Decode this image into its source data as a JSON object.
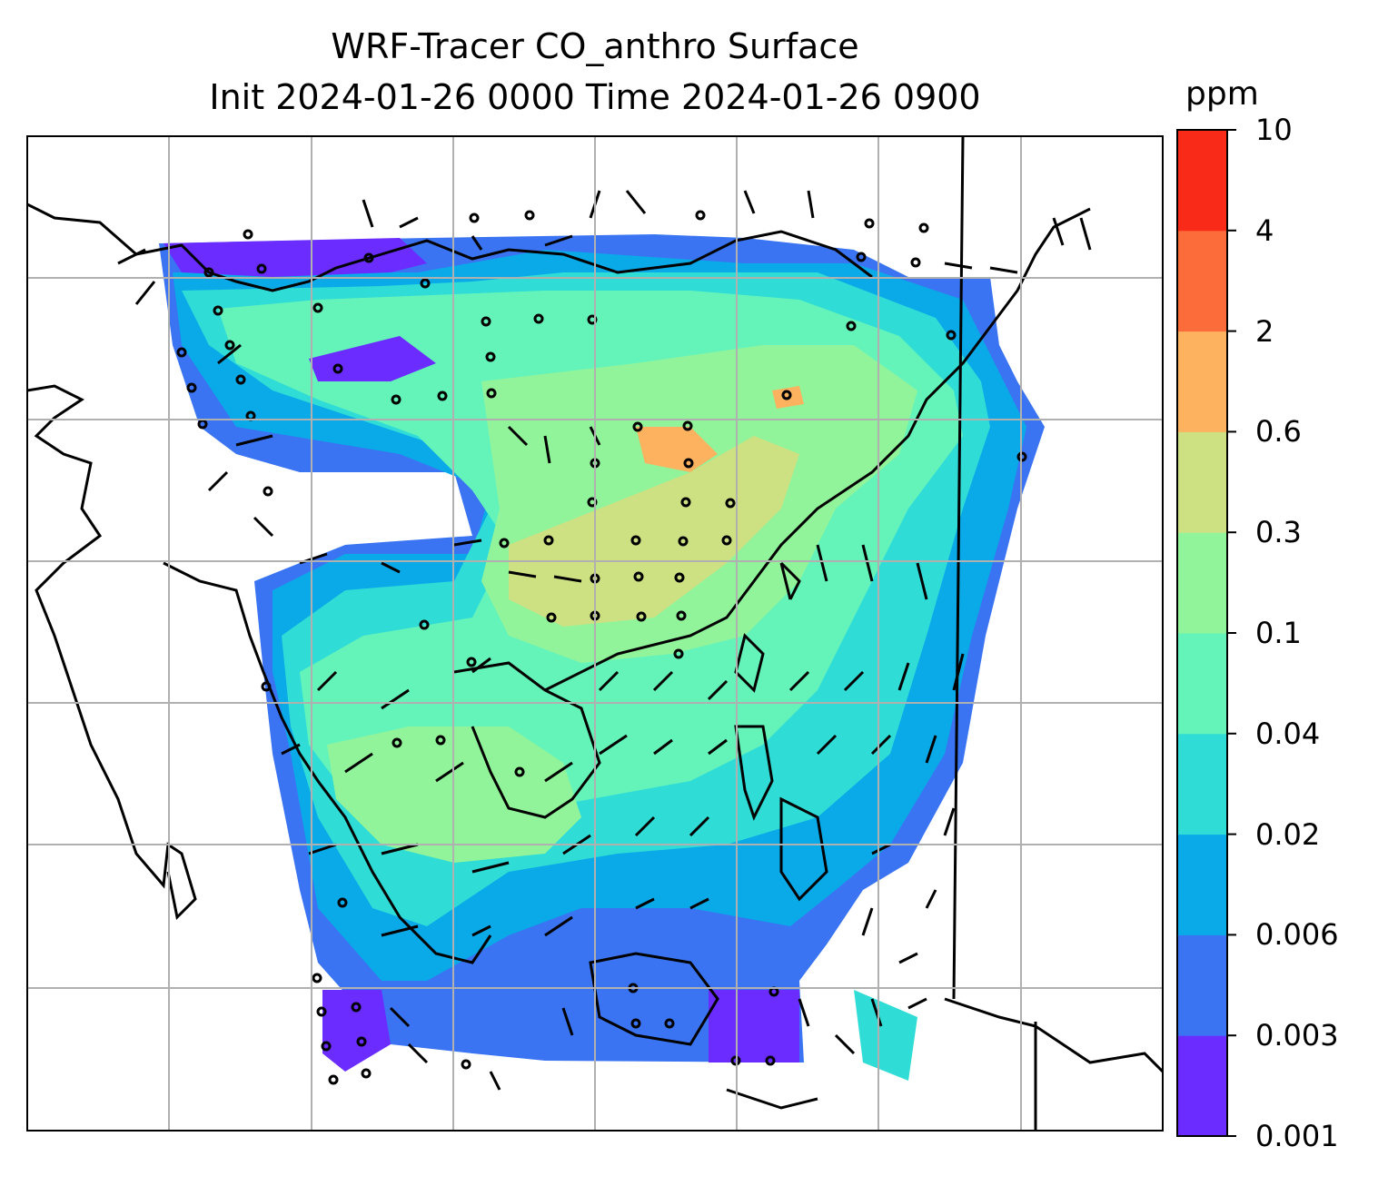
{
  "title": {
    "line1": "WRF-Tracer CO_anthro Surface",
    "line2": "Init 2024-01-26 0000 Time 2024-01-26 0900"
  },
  "colorbar": {
    "unit": "ppm",
    "levels": [
      "0.001",
      "0.003",
      "0.006",
      "0.02",
      "0.04",
      "0.1",
      "0.3",
      "0.6",
      "2",
      "4",
      "10"
    ],
    "colors": [
      "#6a2cff",
      "#3a74f2",
      "#0aa9e8",
      "#2fdcd6",
      "#64f4ba",
      "#92f49a",
      "#cde082",
      "#fcb25e",
      "#fb6c3a",
      "#f92a18"
    ]
  },
  "map": {
    "grid": "on",
    "grid_color": "#b0b0b0",
    "overlays": [
      "CO_anthro concentration contours",
      "wind barbs",
      "coastlines"
    ]
  }
}
